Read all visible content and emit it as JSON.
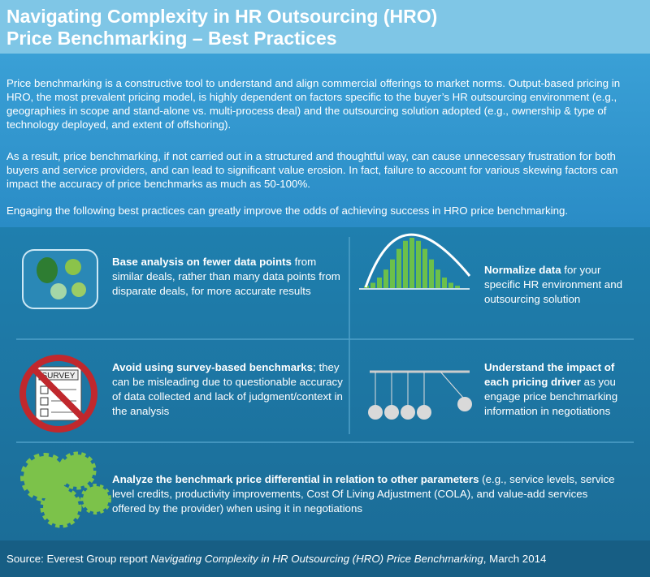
{
  "header": {
    "title_lines": [
      "Navigating Complexity in HR Outsourcing (HRO)",
      "Price Benchmarking – Best Practices"
    ]
  },
  "intro": {
    "paragraphs": [
      "Price benchmarking is a constructive tool to understand and align commercial offerings to market norms. Output-based pricing in HRO, the most prevalent pricing model, is highly dependent on factors specific to the buyer’s HR outsourcing environment (e.g., geographies in scope and stand-alone vs. multi-process deal) and the outsourcing solution adopted (e.g., ownership & type of technology deployed, and extent of offshoring).",
      "As a result, price benchmarking, if not carried out in a structured and thoughtful way, can cause unnecessary frustration for both buyers and service providers, and can lead to significant value erosion. In fact, failure to account for various skewing factors can impact the accuracy of price benchmarks as much as 50-100%.",
      "Engaging the following best practices can greatly improve the odds of achieving success in HRO price benchmarking."
    ]
  },
  "tips": [
    {
      "bold": "Base analysis on fewer data points",
      "text": " from similar deals, rather than many data points from disparate deals, for more accurate results"
    },
    {
      "bold": "Normalize data",
      "text": " for your specific HR environment and outsourcing solution"
    },
    {
      "bold": "Avoid using survey-based benchmarks",
      "text": "; they can be misleading due to questionable accuracy of data collected and lack of judgment/context in the analysis"
    },
    {
      "bold": "Understand the impact of each pricing driver",
      "text": " as you engage price benchmarking information in negotiations"
    },
    {
      "bold": "Analyze the benchmark price differential in relation to other parameters",
      "text": " (e.g., service levels, service level credits, productivity improvements, Cost Of Living Adjustment (COLA), and value-add services offered by the provider) when using it in negotiations"
    }
  ],
  "icons": {
    "survey_label": "SURVEY"
  },
  "footer": {
    "prefix": "Source: Everest Group report ",
    "title": "Navigating Complexity in HR Outsourcing (HRO) Price Benchmarking",
    "suffix": ", March 2014"
  }
}
